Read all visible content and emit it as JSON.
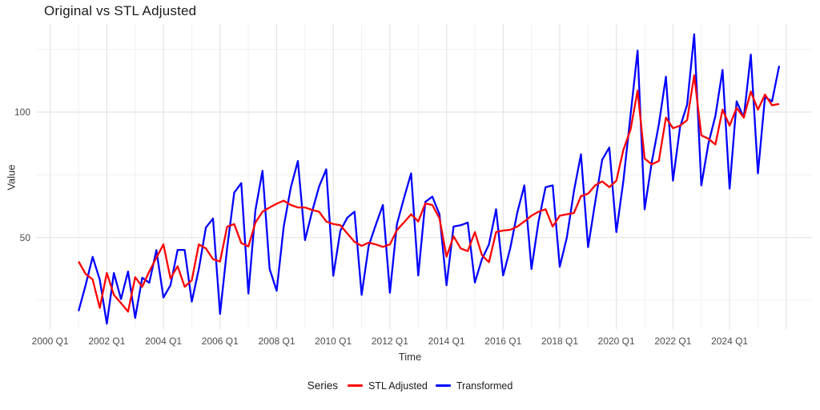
{
  "title": "Original vs STL Adjusted",
  "axes": {
    "x_title": "Time",
    "y_title": "Value",
    "y_ticks": [
      {
        "label": "100",
        "value": 100
      },
      {
        "label": "50",
        "value": 50
      }
    ],
    "y_minor": [
      25,
      75,
      125
    ],
    "x_ticks": [
      {
        "label": "2000 Q1",
        "year": 2000
      },
      {
        "label": "2002 Q1",
        "year": 2002
      },
      {
        "label": "2004 Q1",
        "year": 2004
      },
      {
        "label": "2006 Q1",
        "year": 2006
      },
      {
        "label": "2008 Q1",
        "year": 2008
      },
      {
        "label": "2010 Q1",
        "year": 2010
      },
      {
        "label": "2012 Q1",
        "year": 2012
      },
      {
        "label": "2014 Q1",
        "year": 2014
      },
      {
        "label": "2016 Q1",
        "year": 2016
      },
      {
        "label": "2018 Q1",
        "year": 2018
      },
      {
        "label": "2020 Q1",
        "year": 2020
      },
      {
        "label": "2022 Q1",
        "year": 2022
      },
      {
        "label": "2024 Q1",
        "year": 2024
      }
    ],
    "x_major_grid_years": [
      2000,
      2002,
      2004,
      2006,
      2008,
      2010,
      2012,
      2014,
      2016,
      2018,
      2020,
      2022,
      2024,
      2026
    ],
    "x_minor_grid_years": [
      2001,
      2003,
      2005,
      2007,
      2009,
      2011,
      2013,
      2015,
      2017,
      2019,
      2021,
      2023,
      2025
    ]
  },
  "legend": {
    "title": "Series",
    "items": [
      {
        "label": "STL Adjusted",
        "color": "#FF0000"
      },
      {
        "label": "Transformed",
        "color": "#0000FF"
      }
    ]
  },
  "colors": {
    "grid_major": "#e4e4e4",
    "grid_minor": "#f1f1f1",
    "stl": "#FF0000",
    "transformed": "#0000FF"
  },
  "chart_data": {
    "type": "line",
    "title": "Original vs STL Adjusted",
    "xlabel": "Time",
    "ylabel": "Value",
    "frequency": "quarterly",
    "x_start": "2001 Q1",
    "x_end": "2025 Q4",
    "x_axis_range_years": [
      1999.5,
      2026.9
    ],
    "ylim": [
      13,
      135
    ],
    "grid": true,
    "legend_position": "bottom",
    "series": [
      {
        "name": "Transformed",
        "color": "#0000FF",
        "values": [
          20.7,
          31.0,
          42.3,
          33.2,
          15.7,
          35.9,
          25.5,
          36.5,
          18.0,
          34.0,
          32.0,
          45.0,
          26.1,
          31.0,
          45.1,
          45.1,
          24.5,
          37.5,
          54.0,
          57.6,
          19.6,
          45.7,
          67.9,
          71.7,
          27.7,
          61.0,
          76.6,
          37.5,
          28.8,
          54.4,
          70.0,
          80.5,
          49.0,
          60.3,
          70.4,
          77.2,
          34.8,
          52.7,
          58.0,
          60.3,
          27.2,
          46.7,
          55.0,
          63.0,
          28.0,
          55.4,
          65.9,
          75.6,
          34.9,
          64.2,
          66.3,
          59.3,
          31.0,
          54.4,
          54.9,
          56.0,
          32.1,
          41.4,
          47.3,
          61.3,
          34.9,
          45.6,
          60.0,
          70.8,
          37.5,
          56.4,
          70.1,
          70.8,
          38.4,
          49.9,
          68.5,
          83.2,
          46.2,
          64.0,
          81.0,
          85.9,
          52.2,
          72.7,
          98.8,
          124.5,
          61.3,
          80.0,
          95.0,
          114.1,
          72.7,
          94.0,
          103.0,
          131.0,
          70.8,
          87.4,
          98.5,
          116.8,
          69.5,
          104.3,
          97.8,
          122.9,
          75.6,
          106.0,
          104.3,
          118.4
        ]
      },
      {
        "name": "STL Adjusted",
        "color": "#FF0000",
        "values": [
          40.5,
          35.5,
          33.3,
          22.0,
          35.9,
          27.2,
          23.9,
          20.5,
          34.2,
          30.4,
          36.5,
          42.0,
          47.3,
          33.7,
          38.6,
          30.4,
          33.0,
          47.3,
          45.7,
          41.4,
          40.5,
          54.3,
          55.4,
          47.8,
          46.5,
          56.0,
          60.3,
          62.0,
          63.5,
          64.7,
          63.0,
          62.0,
          62.0,
          61.0,
          60.3,
          56.4,
          55.4,
          54.9,
          51.6,
          48.3,
          46.7,
          48.0,
          47.3,
          46.3,
          47.3,
          53.0,
          56.1,
          59.3,
          56.4,
          63.6,
          63.0,
          57.7,
          42.4,
          50.5,
          45.7,
          44.6,
          52.2,
          43.0,
          40.2,
          52.2,
          52.8,
          53.1,
          54.4,
          56.4,
          58.7,
          60.3,
          61.3,
          54.4,
          58.7,
          59.3,
          59.8,
          66.5,
          67.5,
          70.8,
          72.4,
          70.1,
          72.7,
          85.0,
          93.0,
          108.6,
          81.5,
          79.2,
          80.5,
          97.8,
          93.6,
          94.6,
          96.8,
          114.7,
          90.7,
          89.4,
          87.1,
          101.0,
          94.6,
          101.7,
          97.8,
          108.2,
          101.0,
          107.0,
          102.7,
          103.3
        ]
      }
    ]
  }
}
